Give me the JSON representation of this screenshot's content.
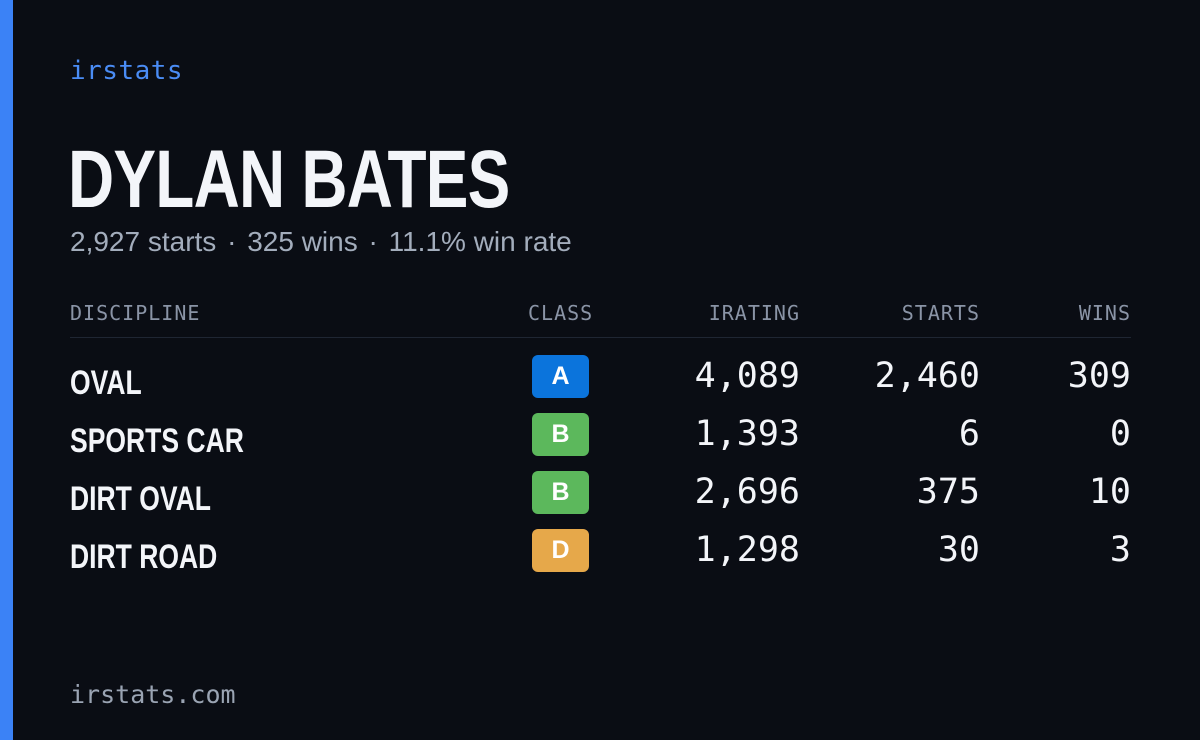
{
  "brand": "irstats",
  "player": {
    "name": "DYLAN BATES",
    "starts": "2,927 starts",
    "wins": "325 wins",
    "win_rate": "11.1% win rate",
    "separator": "·"
  },
  "table": {
    "headers": {
      "discipline": "DISCIPLINE",
      "class": "CLASS",
      "irating": "IRATING",
      "starts": "STARTS",
      "wins": "WINS"
    },
    "rows": [
      {
        "discipline": "OVAL",
        "class": "A",
        "irating": "4,089",
        "starts": "2,460",
        "wins": "309"
      },
      {
        "discipline": "SPORTS CAR",
        "class": "B",
        "irating": "1,393",
        "starts": "6",
        "wins": "0"
      },
      {
        "discipline": "DIRT OVAL",
        "class": "B",
        "irating": "2,696",
        "starts": "375",
        "wins": "10"
      },
      {
        "discipline": "DIRT ROAD",
        "class": "D",
        "irating": "1,298",
        "starts": "30",
        "wins": "3"
      }
    ]
  },
  "class_colors": {
    "A": "#0b74dc",
    "B": "#5cb85c",
    "D": "#e6a84a"
  },
  "colors": {
    "accent": "#3b82f6",
    "background": "#0a0d14"
  },
  "footer": "irstats.com"
}
